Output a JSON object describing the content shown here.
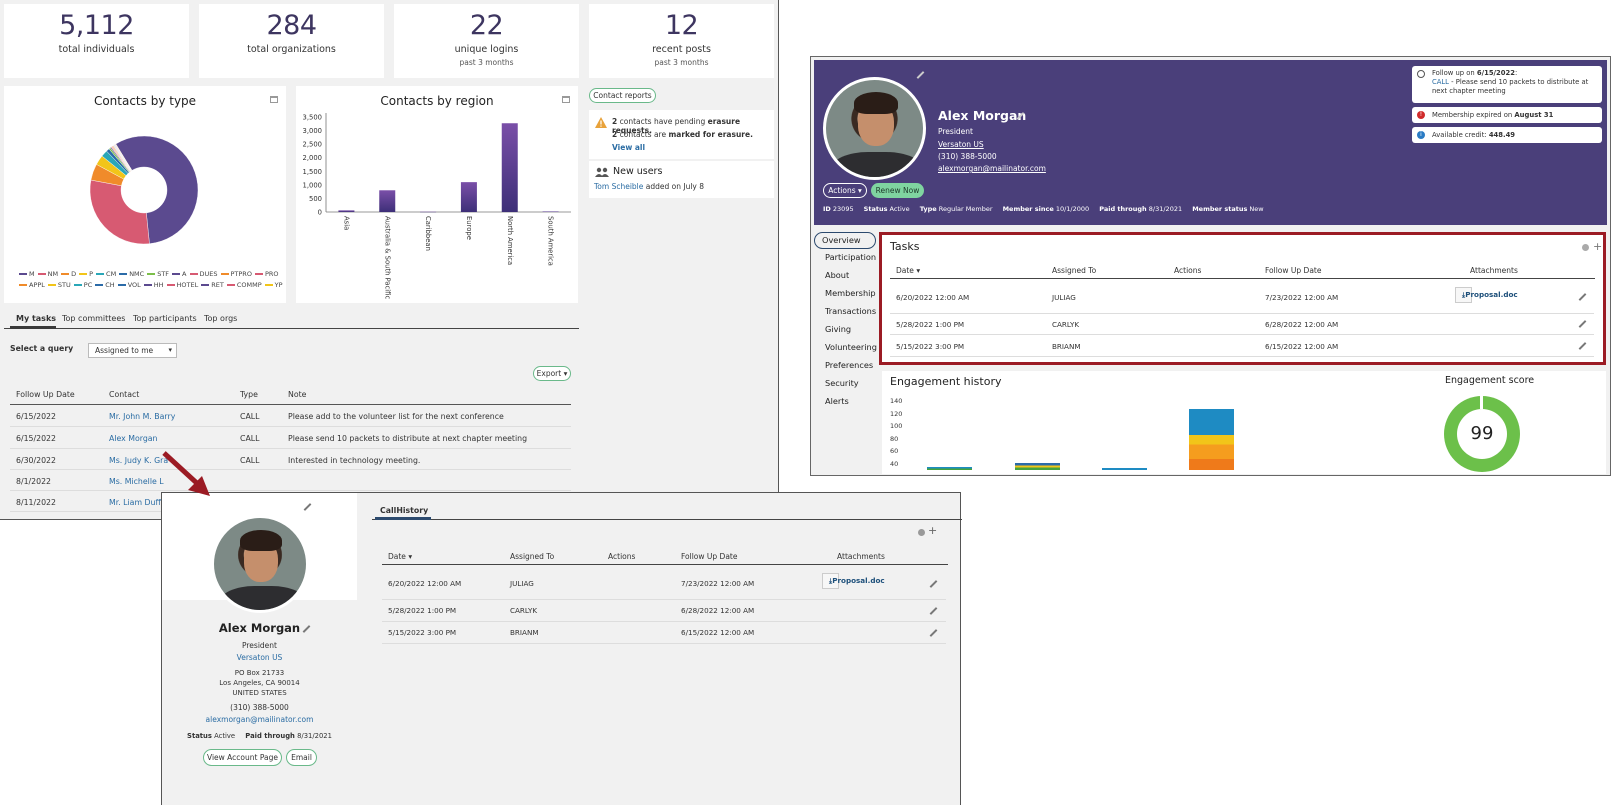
{
  "stats": [
    {
      "num": "5,112",
      "label": "total individuals",
      "sub": ""
    },
    {
      "num": "284",
      "label": "total organizations",
      "sub": ""
    },
    {
      "num": "22",
      "label": "unique logins",
      "sub": "past 3 months"
    },
    {
      "num": "12",
      "label": "recent posts",
      "sub": "past 3 months"
    }
  ],
  "charts": {
    "type_title": "Contacts by type",
    "region_title": "Contacts by region"
  },
  "chart_data": [
    {
      "type": "pie",
      "title": "Contacts by type",
      "categories": [
        "M",
        "NM",
        "D",
        "P",
        "CM",
        "NMC",
        "STF",
        "A",
        "DUES",
        "PTPRO",
        "PRO",
        "APPL",
        "STU",
        "PC",
        "CH",
        "VOL",
        "HH",
        "HOTEL",
        "RET",
        "COMMP",
        "YP"
      ],
      "values": [
        58,
        30,
        5,
        3,
        2,
        1,
        0.5,
        0.3,
        0.2,
        0.2,
        0.2,
        0.2,
        0.1,
        0.1,
        0.1,
        0.1,
        0.1,
        0.1,
        0.1,
        0.1,
        0.1
      ]
    },
    {
      "type": "bar",
      "title": "Contacts by region",
      "categories": [
        "Asia",
        "Australia & South Pacific",
        "Caribbean",
        "Europe",
        "North America",
        "South America"
      ],
      "values": [
        60,
        800,
        10,
        1100,
        3270,
        20
      ],
      "ylim": [
        0,
        3500
      ],
      "yticks": [
        "0",
        "500",
        "1,000",
        "1,500",
        "2,000",
        "2,500",
        "3,000",
        "3,500"
      ]
    }
  ],
  "legend": [
    {
      "label": "M",
      "color": "#5b4a8f"
    },
    {
      "label": "NM",
      "color": "#d75a72"
    },
    {
      "label": "D",
      "color": "#f08b2a"
    },
    {
      "label": "P",
      "color": "#f2c519"
    },
    {
      "label": "CM",
      "color": "#2aa7b8"
    },
    {
      "label": "NMC",
      "color": "#2b6ba8"
    },
    {
      "label": "STF",
      "color": "#7cbf4a"
    },
    {
      "label": "A",
      "color": "#5b4a8f"
    },
    {
      "label": "DUES",
      "color": "#d75a72"
    },
    {
      "label": "PTPRO",
      "color": "#f08b2a"
    },
    {
      "label": "PRO",
      "color": "#d75a72"
    },
    {
      "label": "APPL",
      "color": "#f08b2a"
    },
    {
      "label": "STU",
      "color": "#f2c519"
    },
    {
      "label": "PC",
      "color": "#2aa7b8"
    },
    {
      "label": "CH",
      "color": "#2b6ba8"
    },
    {
      "label": "VOL",
      "color": "#2b6ba8"
    },
    {
      "label": "HH",
      "color": "#5b4a8f"
    },
    {
      "label": "HOTEL",
      "color": "#d75a72"
    },
    {
      "label": "RET",
      "color": "#5b4a8f"
    },
    {
      "label": "COMMP",
      "color": "#d75a72"
    },
    {
      "label": "YP",
      "color": "#f2c519"
    }
  ],
  "contact_reports": {
    "button": "Contact reports",
    "line1_num": "2",
    "line1_text": " contacts have pending ",
    "line1_bold": "erasure requests.",
    "line2_num": "2",
    "line2_text": " contacts are ",
    "line2_bold": "marked for erasure.",
    "view_all": "View all",
    "new_users_title": "New users",
    "new_user_name": "Tom Scheible",
    "new_user_text": " added on July 8"
  },
  "tasks_tabs": [
    "My tasks",
    "Top committees",
    "Top participants",
    "Top orgs"
  ],
  "query": {
    "label": "Select a query",
    "value": "Assigned to me",
    "export": "Export"
  },
  "my_tasks": {
    "headers": [
      "Follow Up Date",
      "Contact",
      "Type",
      "Note"
    ],
    "rows": [
      {
        "date": "6/15/2022",
        "contact": "Mr. John M. Barry",
        "type": "CALL",
        "note": "Please add to the volunteer list for the next conference"
      },
      {
        "date": "6/15/2022",
        "contact": "Alex Morgan",
        "type": "CALL",
        "note": "Please send 10 packets to distribute at next chapter meeting"
      },
      {
        "date": "6/30/2022",
        "contact": "Ms. Judy K. Gra",
        "type": "CALL",
        "note": "Interested in technology meeting."
      },
      {
        "date": "8/1/2022",
        "contact": "Ms. Michelle L",
        "type": "",
        "note": ""
      },
      {
        "date": "8/11/2022",
        "contact": "Mr. Liam Duffi",
        "type": "",
        "note": ""
      }
    ]
  },
  "profile": {
    "name": "Alex Morgan",
    "title": "President",
    "org": "Versaton US",
    "phone": "(310) 388-5000",
    "email": "alexmorgan@mailinator.com",
    "actions": "Actions",
    "renew": "Renew Now",
    "meta": [
      {
        "k": "ID",
        "v": "23095"
      },
      {
        "k": "Status",
        "v": "Active"
      },
      {
        "k": "Type",
        "v": "Regular Member"
      },
      {
        "k": "Member since",
        "v": "10/1/2000"
      },
      {
        "k": "Paid through",
        "v": "8/31/2021"
      },
      {
        "k": "Member status",
        "v": "New"
      }
    ],
    "followup_prefix": "Follow up on ",
    "followup_date": "6/15/2022",
    "followup_link": "CALL",
    "followup_rest": " - Please send 10 packets to distribute at next chapter meeting",
    "membership_text": "Membership expired on ",
    "membership_date": "August 31",
    "credit_text": "Available credit: ",
    "credit_value": "448.49"
  },
  "side_nav": [
    "Overview",
    "Participation",
    "About",
    "Membership",
    "Transactions",
    "Giving",
    "Volunteering",
    "Preferences",
    "Security",
    "Alerts"
  ],
  "tasks": {
    "title": "Tasks",
    "headers": [
      "Date",
      "Assigned To",
      "Actions",
      "Follow Up Date",
      "Attachments"
    ],
    "rows": [
      {
        "date": "6/20/2022 12:00 AM",
        "assigned": "JULIAG",
        "follow": "7/23/2022 12:00 AM",
        "attach": "Proposal.doc"
      },
      {
        "date": "5/28/2022 1:00 PM",
        "assigned": "CARLYK",
        "follow": "6/28/2022 12:00 AM",
        "attach": ""
      },
      {
        "date": "5/15/2022 3:00 PM",
        "assigned": "BRIANM",
        "follow": "6/15/2022 12:00 AM",
        "attach": ""
      }
    ]
  },
  "engagement": {
    "history_title": "Engagement history",
    "score_title": "Engagement score",
    "score": "99",
    "yticks": [
      "140",
      "120",
      "100",
      "80",
      "60",
      "40"
    ]
  },
  "old_profile": {
    "name": "Alex Morgan",
    "title": "President",
    "org": "Versaton US",
    "addr1": "PO Box 21733",
    "addr2": "Los Angeles, CA 90014",
    "addr3": "UNITED STATES",
    "phone": "(310) 388-5000",
    "email": "alexmorgan@mailinator.com",
    "status_k": "Status",
    "status_v": "Active",
    "paid_k": "Paid through",
    "paid_v": "8/31/2021",
    "view_btn": "View Account Page",
    "email_btn": "Email",
    "tab": "CallHistory"
  },
  "colors": {
    "accent": "#4a3f7a",
    "highlight": "#9b1b24",
    "green": "#6ab98a",
    "link": "#2a6ca3"
  }
}
